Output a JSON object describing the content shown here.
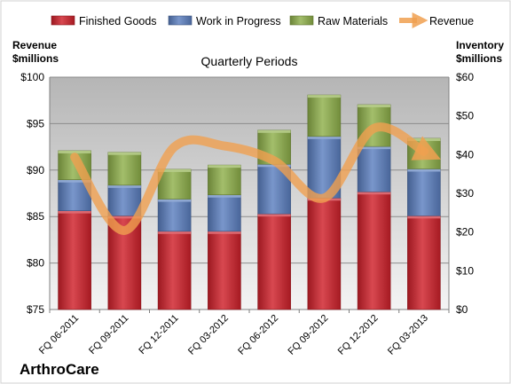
{
  "chart_data": {
    "type": "bar",
    "stacked": true,
    "title": "Quarterly Periods",
    "company": "ArthroCare",
    "categories": [
      "FQ 06-2011",
      "FQ 09-2011",
      "FQ 12-2011",
      "FQ 03-2012",
      "FQ 06-2012",
      "FQ 09-2012",
      "FQ 12-2012",
      "FQ 03-2013"
    ],
    "series": [
      {
        "name": "Finished Goods",
        "axis": "right",
        "color": "#d0202a",
        "values": [
          25.5,
          24.2,
          20.2,
          20.2,
          24.7,
          28.8,
          30.4,
          24.2
        ]
      },
      {
        "name": "Work in Progress",
        "axis": "right",
        "color": "#5b7fc0",
        "values": [
          8.0,
          7.9,
          8.3,
          9.4,
          12.8,
          15.9,
          11.7,
          12.1
        ]
      },
      {
        "name": "Raw Materials",
        "axis": "right",
        "color": "#8fb04a",
        "values": [
          7.5,
          8.5,
          7.7,
          7.7,
          8.8,
          10.7,
          10.8,
          7.9
        ]
      }
    ],
    "line_series": {
      "name": "Revenue",
      "axis": "left",
      "color": "#f0a050",
      "values": [
        91.4,
        83.5,
        92.5,
        92.6,
        91.0,
        87.0,
        94.5,
        92.0
      ]
    },
    "y_left": {
      "label": "Revenue\n$millions",
      "min": 75,
      "max": 100,
      "step": 5,
      "ticks": [
        "$75",
        "$80",
        "$85",
        "$90",
        "$95",
        "$100"
      ]
    },
    "y_right": {
      "label": "Inventory\n$millions",
      "min": 0,
      "max": 60,
      "step": 10,
      "ticks": [
        "$0",
        "$10",
        "$20",
        "$30",
        "$40",
        "$50",
        "$60"
      ]
    },
    "grid": true,
    "legend": "top"
  }
}
